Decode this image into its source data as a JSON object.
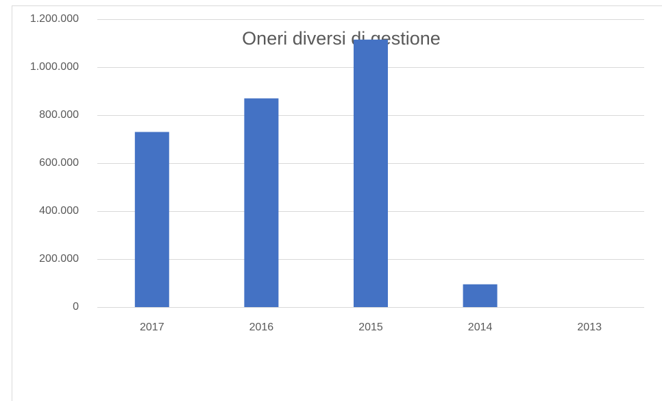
{
  "chart_data": {
    "type": "bar",
    "title": "Oneri diversi di gestione",
    "categories": [
      "2017",
      "2016",
      "2015",
      "2014",
      "2013"
    ],
    "values": [
      730000,
      870000,
      1115000,
      95000,
      0
    ],
    "color": "#4472c4",
    "ylim": [
      0,
      1200000
    ],
    "yticks": [
      0,
      {
        "value": 200000,
        "label": "200.000"
      },
      {
        "value": 400000,
        "label": "400.000"
      },
      {
        "value": 600000,
        "label": "600.000"
      },
      {
        "value": 800000,
        "label": "800.000"
      },
      {
        "value": 1000000,
        "label": "1.000.000"
      },
      {
        "value": 1200000,
        "label": "1.200.000"
      }
    ],
    "grid": true
  }
}
